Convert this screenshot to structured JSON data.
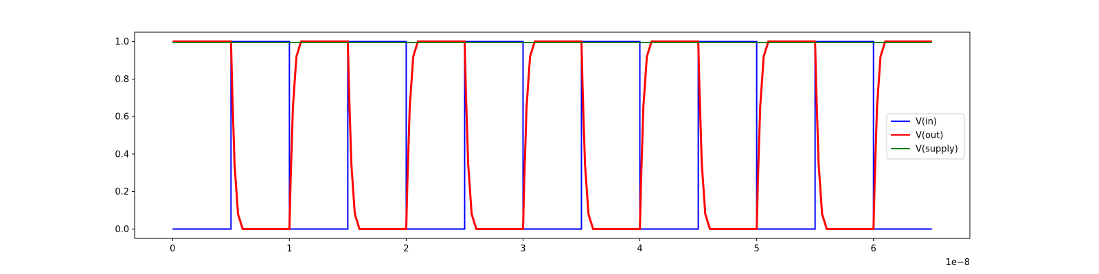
{
  "chart_data": {
    "type": "line",
    "title": "",
    "xlabel": "",
    "ylabel": "",
    "x_offset_label": "1e−8",
    "xlim": [
      -0.325,
      6.825
    ],
    "ylim": [
      -0.05,
      1.05
    ],
    "x_ticks": [
      0,
      1,
      2,
      3,
      4,
      5,
      6
    ],
    "x_tick_labels": [
      "0",
      "1",
      "2",
      "3",
      "4",
      "5",
      "6"
    ],
    "y_ticks": [
      0.0,
      0.2,
      0.4,
      0.6,
      0.8,
      1.0
    ],
    "y_tick_labels": [
      "0.0",
      "0.2",
      "0.4",
      "0.6",
      "0.8",
      "1.0"
    ],
    "grid": false,
    "legend_position": "center-right",
    "series": [
      {
        "name": "V(in)",
        "color": "#0000ff",
        "x": [
          0,
          0.5,
          0.5,
          1.0,
          1.0,
          1.5,
          1.5,
          2.0,
          2.0,
          2.5,
          2.5,
          3.0,
          3.0,
          3.5,
          3.5,
          4.0,
          4.0,
          4.5,
          4.5,
          5.0,
          5.0,
          5.5,
          5.5,
          6.0,
          6.0,
          6.5
        ],
        "values": [
          0,
          0,
          1,
          1,
          0,
          0,
          1,
          1,
          0,
          0,
          1,
          1,
          0,
          0,
          1,
          1,
          0,
          0,
          1,
          1,
          0,
          0,
          1,
          1,
          0,
          0
        ]
      },
      {
        "name": "V(out)",
        "color": "#ff0000",
        "x": [
          0,
          0.5,
          0.51,
          0.53,
          0.56,
          0.6,
          1.0,
          1.01,
          1.03,
          1.06,
          1.1,
          1.5,
          1.51,
          1.53,
          1.56,
          1.6,
          2.0,
          2.01,
          2.03,
          2.06,
          2.1,
          2.5,
          2.51,
          2.53,
          2.56,
          2.6,
          3.0,
          3.01,
          3.03,
          3.06,
          3.1,
          3.5,
          3.51,
          3.53,
          3.56,
          3.6,
          4.0,
          4.01,
          4.03,
          4.06,
          4.1,
          4.5,
          4.51,
          4.53,
          4.56,
          4.6,
          5.0,
          5.01,
          5.03,
          5.06,
          5.1,
          5.5,
          5.51,
          5.53,
          5.56,
          5.6,
          6.0,
          6.01,
          6.03,
          6.06,
          6.1,
          6.5
        ],
        "values": [
          1,
          1,
          0.75,
          0.35,
          0.08,
          0,
          0,
          0.25,
          0.65,
          0.92,
          1,
          1,
          0.75,
          0.35,
          0.08,
          0,
          0,
          0.25,
          0.65,
          0.92,
          1,
          1,
          0.75,
          0.35,
          0.08,
          0,
          0,
          0.25,
          0.65,
          0.92,
          1,
          1,
          0.75,
          0.35,
          0.08,
          0,
          0,
          0.25,
          0.65,
          0.92,
          1,
          1,
          0.75,
          0.35,
          0.08,
          0,
          0,
          0.25,
          0.65,
          0.92,
          1,
          1,
          0.75,
          0.35,
          0.08,
          0,
          0,
          0.25,
          0.65,
          0.92,
          1,
          1
        ]
      },
      {
        "name": "V(supply)",
        "color": "#008000",
        "x": [
          0,
          6.5
        ],
        "values": [
          0.995,
          0.995
        ]
      }
    ]
  }
}
